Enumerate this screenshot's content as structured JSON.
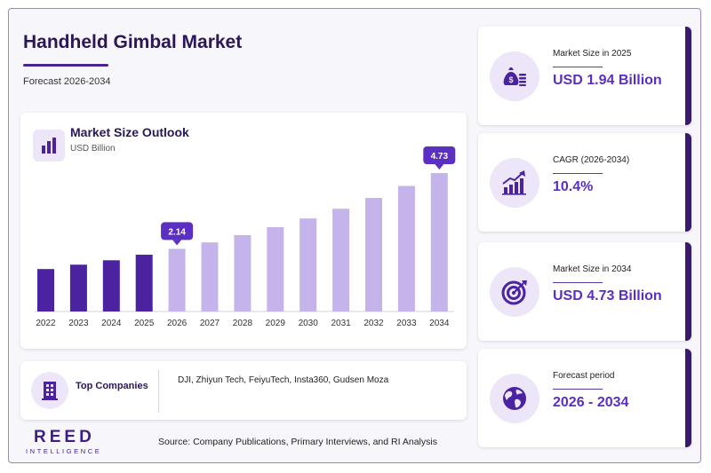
{
  "header": {
    "title": "Handheld Gimbal Market",
    "subtitle": "Forecast 2026-2034"
  },
  "colors": {
    "brand_dark": "#3d1e86",
    "historical_bar": "#4b23a0",
    "forecast_bar": "#c5b4ec",
    "callout": "#5a2fc2"
  },
  "chart_data": {
    "type": "bar",
    "title": "Market Size Outlook",
    "ylabel": "USD Billion",
    "categories": [
      "2022",
      "2023",
      "2024",
      "2025",
      "2026",
      "2027",
      "2028",
      "2029",
      "2030",
      "2031",
      "2032",
      "2033",
      "2034"
    ],
    "values": [
      1.45,
      1.6,
      1.75,
      1.94,
      2.14,
      2.36,
      2.61,
      2.88,
      3.18,
      3.51,
      3.88,
      4.29,
      4.73
    ],
    "historical_count": 4,
    "callouts": [
      {
        "category": "2026",
        "label": "2.14"
      },
      {
        "category": "2034",
        "label": "4.73"
      }
    ],
    "ylim": [
      0,
      4.73
    ],
    "grid": false,
    "legend": "none"
  },
  "companies": {
    "label": "Top Companies",
    "list": "DJI, Zhiyun Tech, FeiyuTech, Insta360, Gudsen Moza"
  },
  "stats": [
    {
      "label": "Market Size in 2025",
      "value": "USD 1.94 Billion",
      "icon": "money-bag-icon"
    },
    {
      "label": "CAGR (2026-2034)",
      "value": "10.4%",
      "icon": "growth-chart-icon"
    },
    {
      "label": "Market Size in 2034",
      "value": "USD 4.73 Billion",
      "icon": "target-icon"
    },
    {
      "label": "Forecast period",
      "value": "2026 - 2034",
      "icon": "globe-icon"
    }
  ],
  "footer": {
    "logo_main": "REED",
    "logo_sub": "INTELLIGENCE",
    "source": "Source: Company Publications, Primary Interviews, and RI Analysis"
  }
}
